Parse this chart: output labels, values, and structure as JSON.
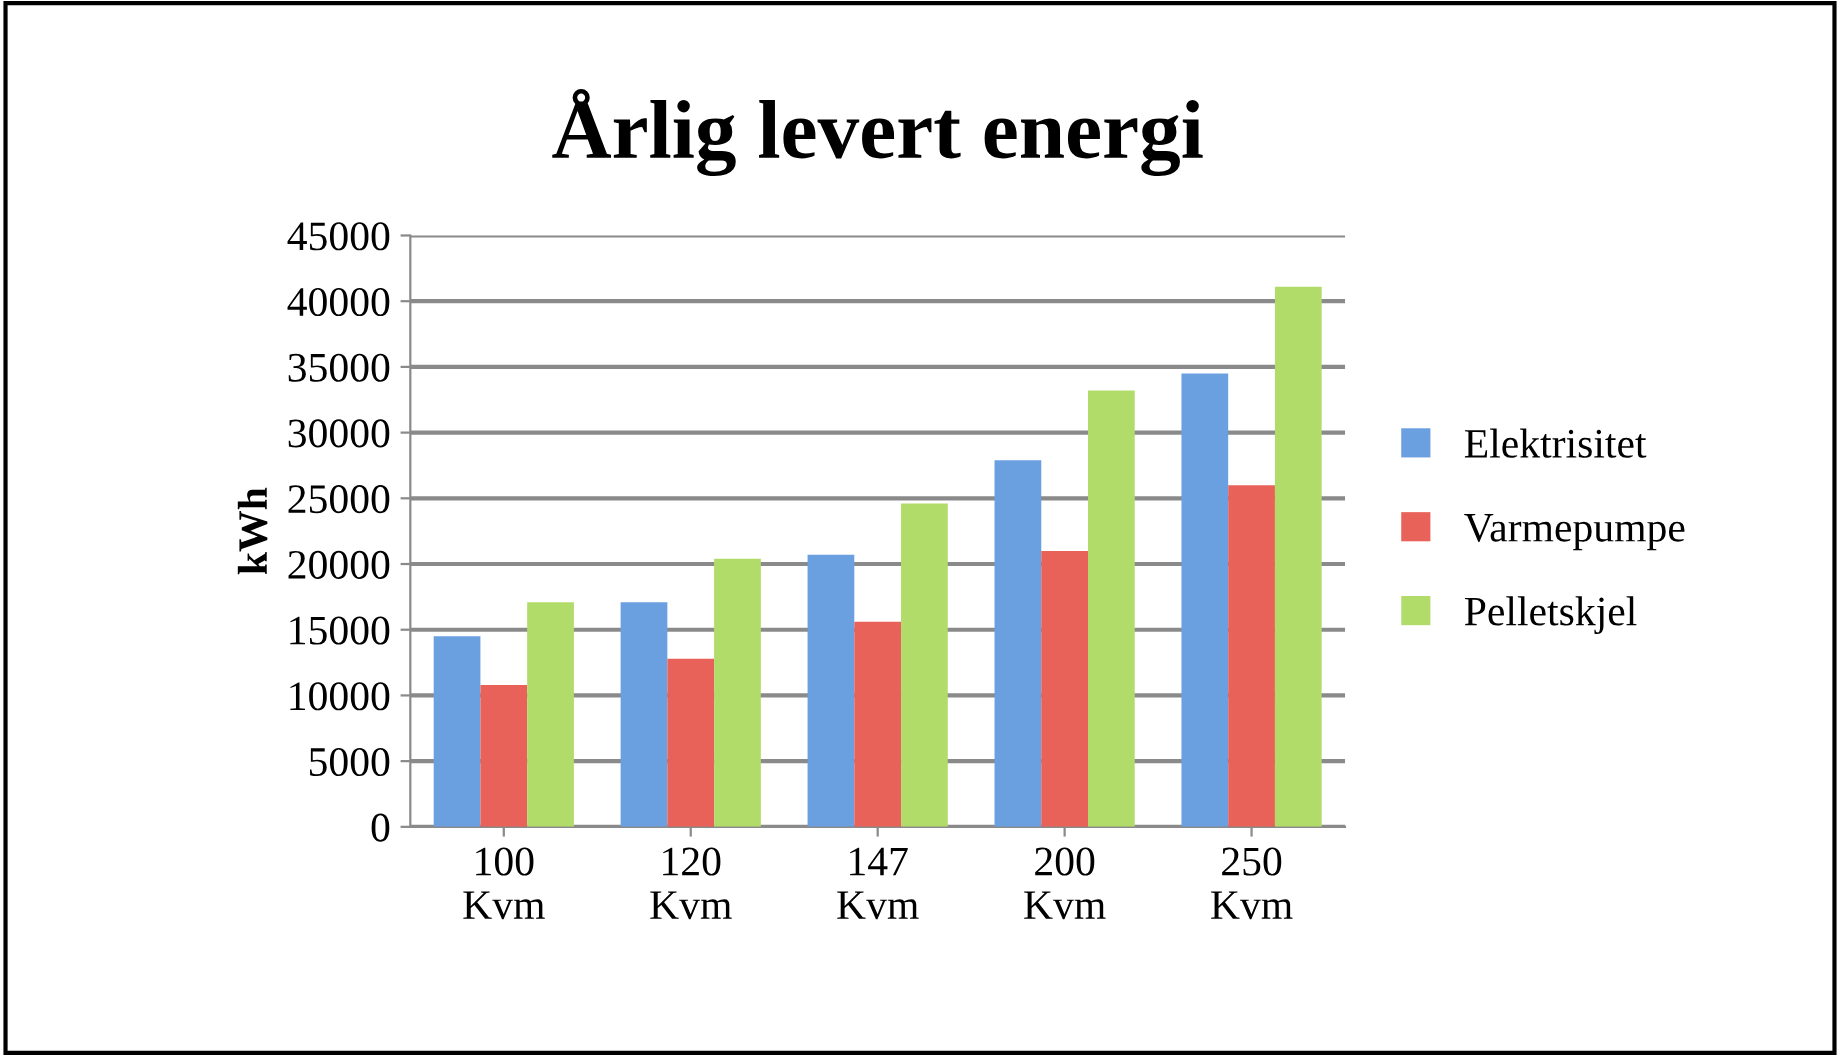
{
  "chart_data": {
    "type": "bar",
    "title": "Årlig levert energi",
    "ylabel": "kWh",
    "categories": [
      "100\nKvm",
      "120\nKvm",
      "147\nKvm",
      "200\nKvm",
      "250\nKvm"
    ],
    "series": [
      {
        "name": "Elektrisitet",
        "color": "#6a9fe0",
        "values": [
          14500,
          17100,
          20700,
          27900,
          34500
        ]
      },
      {
        "name": "Varmepumpe",
        "color": "#e8625a",
        "values": [
          10800,
          12800,
          15600,
          21000,
          26000
        ]
      },
      {
        "name": "Pelletskjel",
        "color": "#b2dc6a",
        "values": [
          17100,
          20400,
          24600,
          33200,
          41100
        ]
      }
    ],
    "ylim": [
      0,
      45000
    ],
    "yticks": [
      0,
      5000,
      10000,
      15000,
      20000,
      25000,
      30000,
      35000,
      40000,
      45000
    ],
    "grid": "y",
    "legend": "right"
  }
}
